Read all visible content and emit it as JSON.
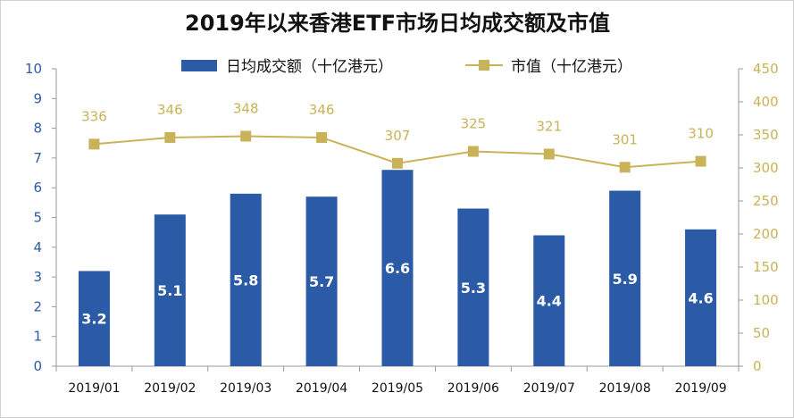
{
  "chart_data": {
    "type": "bar",
    "title": "2019年以来香港ETF市场日均成交额及市值",
    "categories": [
      "2019/01",
      "2019/02",
      "2019/03",
      "2019/04",
      "2019/05",
      "2019/06",
      "2019/07",
      "2019/08",
      "2019/09"
    ],
    "series": [
      {
        "name": "日均成交额（十亿港元）",
        "type": "bar",
        "axis": "left",
        "color": "#2b5aa6",
        "values": [
          3.2,
          5.1,
          5.8,
          5.7,
          6.6,
          5.3,
          4.4,
          5.9,
          4.6
        ]
      },
      {
        "name": "市值（十亿港元）",
        "type": "line",
        "axis": "right",
        "color": "#c9b257",
        "marker": "square",
        "values": [
          336,
          346,
          348,
          346,
          307,
          325,
          321,
          301,
          310
        ]
      }
    ],
    "left_axis": {
      "ylim": [
        0,
        10
      ],
      "ticks": [
        0,
        1,
        2,
        3,
        4,
        5,
        6,
        7,
        8,
        9,
        10
      ]
    },
    "right_axis": {
      "ylim": [
        0,
        450
      ],
      "ticks": [
        0,
        50,
        100,
        150,
        200,
        250,
        300,
        350,
        400,
        450
      ]
    },
    "legend_position": "top",
    "grid": false,
    "data_labels": true
  }
}
